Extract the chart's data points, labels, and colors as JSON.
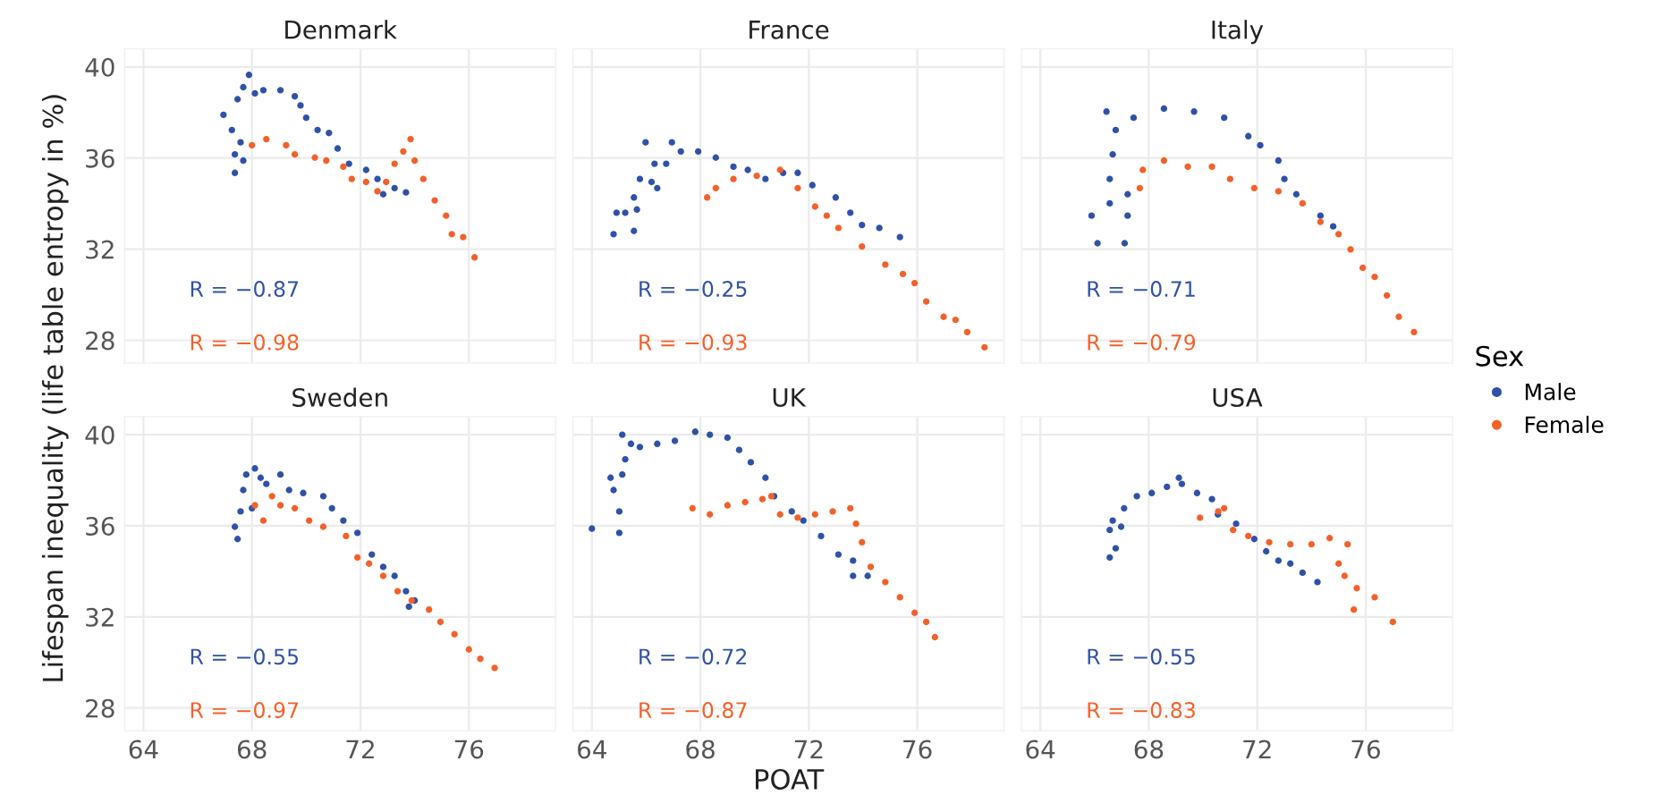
{
  "chart_data": [
    {
      "type": "scatter",
      "title": "Denmark",
      "marker": "circle",
      "grid": true,
      "tick_labels": "y",
      "xlim": [
        63.3,
        79.2
      ],
      "ylim": [
        27,
        40.8
      ],
      "xticks": [
        64,
        68,
        72,
        76
      ],
      "yticks": [
        28,
        32,
        36,
        40
      ],
      "annotations": [
        "R = −0.87",
        "R = −0.98"
      ],
      "series": [
        {
          "color": "#2f52a8",
          "x": [
            66.95,
            67.26,
            67.37,
            67.37,
            67.68,
            67.58,
            67.47,
            67.68,
            67.89,
            68.11,
            68.42,
            69.05,
            69.58,
            69.79,
            70.0,
            70.42,
            70.84,
            71.16,
            71.58,
            72.21,
            72.63,
            72.84,
            73.26,
            73.68
          ],
          "values": [
            37.9,
            37.23,
            36.16,
            35.35,
            35.89,
            36.69,
            38.58,
            39.11,
            39.65,
            38.84,
            38.98,
            38.98,
            38.71,
            38.31,
            37.77,
            37.23,
            37.1,
            36.42,
            35.75,
            35.48,
            35.08,
            34.41,
            34.68,
            34.49
          ]
        },
        {
          "color": "#f4602a",
          "x": [
            68.0,
            68.53,
            69.26,
            69.58,
            70.32,
            70.74,
            71.37,
            71.68,
            72.21,
            72.63,
            72.95,
            73.26,
            73.58,
            73.85,
            74.0,
            74.32,
            74.74,
            75.16,
            75.37,
            75.79,
            76.21
          ],
          "values": [
            36.56,
            36.83,
            36.56,
            36.16,
            36.02,
            35.89,
            35.62,
            35.08,
            34.95,
            34.54,
            34.95,
            35.75,
            36.29,
            36.83,
            35.89,
            35.08,
            34.14,
            33.47,
            32.66,
            32.53,
            31.64
          ]
        }
      ]
    },
    {
      "type": "scatter",
      "title": "France",
      "marker": "circle",
      "grid": true,
      "tick_labels": false,
      "xlim": [
        63.3,
        79.2
      ],
      "ylim": [
        27,
        40.8
      ],
      "xticks": [
        64,
        68,
        72,
        76
      ],
      "yticks": [
        28,
        32,
        36,
        40
      ],
      "annotations": [
        "R = −0.25",
        "R = −0.93"
      ],
      "series": [
        {
          "color": "#2f52a8",
          "x": [
            64.8,
            64.91,
            65.23,
            65.55,
            65.66,
            65.55,
            65.77,
            66.2,
            66.41,
            65.98,
            66.31,
            66.74,
            66.95,
            67.28,
            67.92,
            68.57,
            69.22,
            69.75,
            70.4,
            71.05,
            71.59,
            72.13,
            72.99,
            73.53,
            73.96,
            74.6,
            75.36
          ],
          "values": [
            32.66,
            33.6,
            33.6,
            32.8,
            33.74,
            34.27,
            35.08,
            34.95,
            34.68,
            36.69,
            35.75,
            35.75,
            36.69,
            36.29,
            36.29,
            36.02,
            35.62,
            35.48,
            35.08,
            35.35,
            35.35,
            34.81,
            34.27,
            33.6,
            33.06,
            32.93,
            32.53
          ]
        },
        {
          "color": "#f4602a",
          "x": [
            68.25,
            68.57,
            69.22,
            70.08,
            70.94,
            71.59,
            72.23,
            72.66,
            73.09,
            73.96,
            74.82,
            75.47,
            75.9,
            76.33,
            76.97,
            77.41,
            77.84,
            78.48
          ],
          "values": [
            34.27,
            34.68,
            35.08,
            35.22,
            35.48,
            34.68,
            33.87,
            33.47,
            32.93,
            32.12,
            31.32,
            30.91,
            30.51,
            29.7,
            29.03,
            28.9,
            28.36,
            27.69
          ]
        }
      ]
    },
    {
      "type": "scatter",
      "title": "Italy",
      "marker": "circle",
      "grid": true,
      "tick_labels": false,
      "xlim": [
        63.3,
        79.2
      ],
      "ylim": [
        27,
        40.8
      ],
      "xticks": [
        64,
        68,
        72,
        76
      ],
      "yticks": [
        28,
        32,
        36,
        40
      ],
      "annotations": [
        "R = −0.71",
        "R = −0.79"
      ],
      "series": [
        {
          "color": "#2f52a8",
          "x": [
            66.11,
            65.89,
            66.56,
            66.56,
            66.67,
            67.22,
            67.22,
            67.11,
            66.78,
            66.44,
            67.44,
            68.56,
            69.67,
            70.78,
            71.67,
            72.11,
            72.78,
            73.0,
            73.44,
            74.33,
            74.8
          ],
          "values": [
            32.26,
            33.47,
            34.01,
            35.08,
            36.16,
            34.41,
            33.47,
            32.26,
            37.23,
            38.04,
            37.77,
            38.17,
            38.04,
            37.77,
            36.96,
            36.56,
            35.89,
            35.08,
            34.41,
            33.47,
            33.0
          ]
        },
        {
          "color": "#f4602a",
          "x": [
            67.67,
            67.78,
            68.56,
            69.44,
            70.33,
            71.0,
            71.89,
            72.78,
            73.67,
            74.33,
            75.0,
            75.44,
            75.89,
            76.33,
            76.78,
            77.22,
            77.78
          ],
          "values": [
            34.68,
            35.48,
            35.89,
            35.62,
            35.62,
            35.08,
            34.68,
            34.54,
            34.01,
            33.2,
            32.66,
            31.99,
            31.18,
            30.78,
            29.97,
            29.03,
            28.36
          ]
        }
      ]
    },
    {
      "type": "scatter",
      "title": "Sweden",
      "marker": "circle",
      "grid": true,
      "xlim": [
        63.3,
        79.2
      ],
      "ylim": [
        27,
        40.8
      ],
      "xticks": [
        64,
        68,
        72,
        76
      ],
      "yticks": [
        28,
        32,
        36,
        40
      ],
      "ylabel": "Lifespan inequality (life table entropy in %)",
      "annotations": [
        "R = −0.55",
        "R = −0.97"
      ],
      "series": [
        {
          "color": "#2f52a8",
          "x": [
            67.37,
            67.47,
            67.58,
            67.68,
            67.79,
            68.11,
            68.32,
            68.53,
            68.0,
            69.05,
            69.37,
            69.89,
            70.63,
            70.95,
            71.37,
            71.89,
            72.42,
            72.84,
            73.26,
            73.68,
            73.79,
            74.0
          ],
          "values": [
            35.96,
            35.42,
            36.63,
            37.57,
            38.25,
            38.52,
            38.11,
            37.84,
            36.77,
            38.25,
            37.57,
            37.44,
            37.3,
            36.77,
            36.23,
            35.69,
            34.74,
            34.2,
            33.8,
            33.13,
            32.45,
            32.72
          ]
        },
        {
          "color": "#f4602a",
          "x": [
            68.11,
            68.42,
            68.74,
            69.05,
            69.58,
            70.11,
            70.63,
            71.47,
            71.89,
            72.32,
            72.84,
            73.37,
            73.89,
            74.53,
            74.95,
            75.47,
            76.0,
            76.42,
            76.95
          ],
          "values": [
            36.9,
            36.23,
            37.3,
            36.9,
            36.77,
            36.23,
            35.96,
            35.55,
            34.61,
            34.34,
            33.8,
            33.13,
            32.72,
            32.32,
            31.78,
            31.24,
            30.57,
            30.16,
            29.76
          ]
        }
      ]
    },
    {
      "type": "scatter",
      "title": "UK",
      "marker": "circle",
      "grid": true,
      "tick_labels": "x",
      "xlim": [
        63.3,
        79.2
      ],
      "ylim": [
        27,
        40.8
      ],
      "xticks": [
        64,
        68,
        72,
        76
      ],
      "yticks": [
        28,
        32,
        36,
        40
      ],
      "xlabel": "POAT",
      "annotations": [
        "R = −0.72",
        "R = −0.87"
      ],
      "series": [
        {
          "color": "#2f52a8",
          "x": [
            64.0,
            65.01,
            65.01,
            64.8,
            64.69,
            65.12,
            65.23,
            65.12,
            65.44,
            65.77,
            66.41,
            67.06,
            67.81,
            68.35,
            69.0,
            69.43,
            69.86,
            70.4,
            70.72,
            71.37,
            71.8,
            72.45,
            73.09,
            73.63,
            73.63,
            74.17
          ],
          "values": [
            35.88,
            35.69,
            36.63,
            37.57,
            38.11,
            38.25,
            38.92,
            40.0,
            39.6,
            39.46,
            39.6,
            39.73,
            40.13,
            40.0,
            39.87,
            39.33,
            38.79,
            38.11,
            37.3,
            36.63,
            36.23,
            35.55,
            34.74,
            34.47,
            33.8,
            33.8
          ]
        },
        {
          "color": "#f4602a",
          "x": [
            67.71,
            68.35,
            69.0,
            69.65,
            70.29,
            70.62,
            70.94,
            71.59,
            72.23,
            72.88,
            73.53,
            73.74,
            73.96,
            74.28,
            74.82,
            75.36,
            75.9,
            76.33,
            76.65
          ],
          "values": [
            36.77,
            36.5,
            36.9,
            37.04,
            37.17,
            37.3,
            36.5,
            36.36,
            36.5,
            36.63,
            36.77,
            36.09,
            35.28,
            34.2,
            33.53,
            32.86,
            32.18,
            31.78,
            31.11
          ]
        }
      ]
    },
    {
      "type": "scatter",
      "title": "USA",
      "marker": "circle",
      "grid": true,
      "tick_labels": "x",
      "xlim": [
        63.3,
        79.2
      ],
      "ylim": [
        27,
        40.8
      ],
      "xticks": [
        64,
        68,
        72,
        76
      ],
      "yticks": [
        28,
        32,
        36,
        40
      ],
      "legend": "right",
      "legend_title": "Sex",
      "annotations": [
        "R = −0.55",
        "R = −0.83"
      ],
      "series": [
        {
          "name": "Male",
          "color": "#2f52a8",
          "x": [
            66.56,
            66.78,
            66.56,
            66.67,
            66.98,
            67.09,
            67.56,
            68.11,
            68.67,
            69.11,
            69.22,
            69.78,
            70.33,
            70.55,
            71.22,
            71.89,
            72.33,
            72.78,
            73.22,
            73.67,
            74.22
          ],
          "values": [
            34.61,
            35.01,
            35.82,
            36.23,
            35.96,
            36.77,
            37.3,
            37.44,
            37.71,
            38.11,
            37.84,
            37.44,
            37.17,
            36.5,
            36.09,
            35.42,
            34.88,
            34.47,
            34.34,
            33.94,
            33.53
          ]
        },
        {
          "name": "Female",
          "color": "#f4602a",
          "x": [
            69.89,
            70.56,
            70.78,
            71.11,
            71.67,
            72.44,
            73.22,
            74.0,
            74.67,
            75.33,
            75.0,
            75.22,
            75.67,
            75.56,
            76.33,
            77.0
          ],
          "values": [
            36.36,
            36.63,
            36.77,
            35.82,
            35.55,
            35.28,
            35.19,
            35.19,
            35.46,
            35.19,
            34.34,
            33.8,
            33.26,
            32.32,
            32.86,
            31.78
          ]
        }
      ]
    }
  ]
}
